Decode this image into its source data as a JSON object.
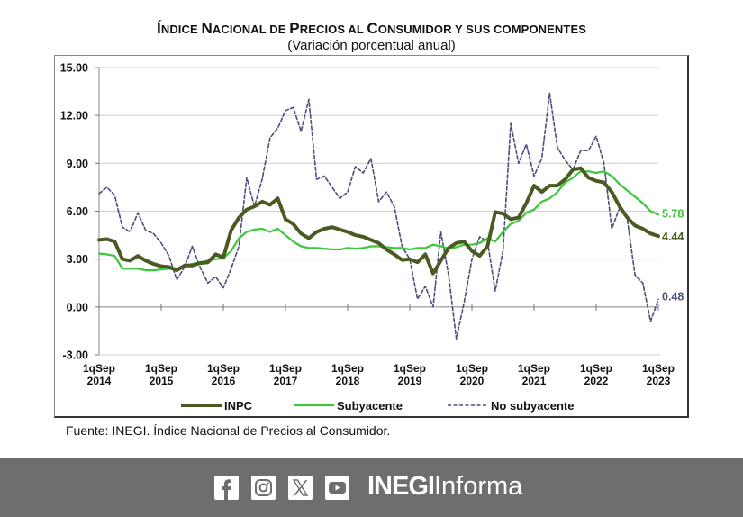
{
  "title_parts": {
    "p1_big": "Í",
    "p1_small": "NDICE ",
    "p2_big": "N",
    "p2_small": "ACIONAL DE ",
    "p3_big": "P",
    "p3_small": "RECIOS AL ",
    "p4_big": "C",
    "p4_small": "ONSUMIDOR Y SUS COMPONENTES"
  },
  "subtitle": "(Variación porcentual anual)",
  "source": "Fuente: INEGI. Índice Nacional de Precios al Consumidor.",
  "footer": {
    "social_icons": [
      "facebook-icon",
      "instagram-icon",
      "x-icon",
      "youtube-icon"
    ],
    "brand_bold": "INEGI",
    "brand_light": "Informa",
    "background": "#6d6e70"
  },
  "chart_data": {
    "type": "line",
    "title": "ÍNDICE NACIONAL DE PRECIOS AL CONSUMIDOR Y SUS COMPONENTES",
    "subtitle": "(Variación porcentual anual)",
    "xlabel": "",
    "ylabel": "",
    "ylim": [
      -3,
      15
    ],
    "yticks": [
      "15.00",
      "12.00",
      "9.00",
      "6.00",
      "3.00",
      "0.00",
      "-3.00"
    ],
    "ytick_values": [
      15,
      12,
      9,
      6,
      3,
      0,
      -3
    ],
    "xlim": [
      2014.0,
      2023.0
    ],
    "xticks": [
      {
        "line1": "1qSep",
        "line2": "2014",
        "value": 2014
      },
      {
        "line1": "1qSep",
        "line2": "2015",
        "value": 2015
      },
      {
        "line1": "1qSep",
        "line2": "2016",
        "value": 2016
      },
      {
        "line1": "1qSep",
        "line2": "2017",
        "value": 2017
      },
      {
        "line1": "1qSep",
        "line2": "2018",
        "value": 2018
      },
      {
        "line1": "1qSep",
        "line2": "2019",
        "value": 2019
      },
      {
        "line1": "1qSep",
        "line2": "2020",
        "value": 2020
      },
      {
        "line1": "1qSep",
        "line2": "2021",
        "value": 2021
      },
      {
        "line1": "1qSep",
        "line2": "2022",
        "value": 2022
      },
      {
        "line1": "1qSep",
        "line2": "2023",
        "value": 2023
      }
    ],
    "grid": "horizontal",
    "legend_position": "bottom",
    "x": [
      2014.0,
      2014.125,
      2014.25,
      2014.375,
      2014.5,
      2014.625,
      2014.75,
      2014.875,
      2015.0,
      2015.125,
      2015.25,
      2015.375,
      2015.5,
      2015.625,
      2015.75,
      2015.875,
      2016.0,
      2016.125,
      2016.25,
      2016.375,
      2016.5,
      2016.625,
      2016.75,
      2016.875,
      2017.0,
      2017.125,
      2017.25,
      2017.375,
      2017.5,
      2017.625,
      2017.75,
      2017.875,
      2018.0,
      2018.125,
      2018.25,
      2018.375,
      2018.5,
      2018.625,
      2018.75,
      2018.875,
      2019.0,
      2019.125,
      2019.25,
      2019.375,
      2019.5,
      2019.625,
      2019.75,
      2019.875,
      2020.0,
      2020.125,
      2020.25,
      2020.375,
      2020.5,
      2020.625,
      2020.75,
      2020.875,
      2021.0,
      2021.125,
      2021.25,
      2021.375,
      2021.5,
      2021.625,
      2021.75,
      2021.875,
      2022.0,
      2022.125,
      2022.25,
      2022.375,
      2022.5,
      2022.625,
      2022.75,
      2022.875,
      2023.0
    ],
    "series": [
      {
        "name": "INPC",
        "color": "#4b5a23",
        "style": "solid-thick",
        "end_label": "4.44",
        "values": [
          4.2,
          4.25,
          4.1,
          3.0,
          2.9,
          3.2,
          2.9,
          2.7,
          2.55,
          2.5,
          2.3,
          2.6,
          2.6,
          2.75,
          2.8,
          3.3,
          3.1,
          4.8,
          5.6,
          6.1,
          6.3,
          6.6,
          6.4,
          6.8,
          5.5,
          5.2,
          4.6,
          4.3,
          4.7,
          4.9,
          5.0,
          4.85,
          4.7,
          4.5,
          4.4,
          4.2,
          4.0,
          3.6,
          3.3,
          2.95,
          3.0,
          2.8,
          3.3,
          2.1,
          2.9,
          3.7,
          4.0,
          4.1,
          3.5,
          3.2,
          3.8,
          5.95,
          5.85,
          5.5,
          5.6,
          6.5,
          7.6,
          7.2,
          7.6,
          7.6,
          8.0,
          8.6,
          8.7,
          8.1,
          7.9,
          7.8,
          7.2,
          6.3,
          5.6,
          5.1,
          4.9,
          4.6,
          4.44
        ]
      },
      {
        "name": "Subyacente",
        "color": "#3ec73c",
        "style": "solid",
        "end_label": "5.78",
        "values": [
          3.35,
          3.3,
          3.2,
          2.4,
          2.4,
          2.4,
          2.3,
          2.3,
          2.35,
          2.4,
          2.4,
          2.6,
          2.7,
          2.8,
          2.9,
          3.0,
          3.05,
          3.5,
          4.3,
          4.7,
          4.85,
          4.9,
          4.7,
          4.9,
          4.5,
          4.1,
          3.8,
          3.7,
          3.7,
          3.65,
          3.6,
          3.6,
          3.7,
          3.65,
          3.7,
          3.8,
          3.8,
          3.75,
          3.7,
          3.7,
          3.6,
          3.7,
          3.7,
          3.9,
          3.8,
          3.65,
          3.75,
          3.9,
          3.9,
          4.0,
          4.3,
          4.1,
          4.7,
          5.2,
          5.4,
          5.9,
          6.1,
          6.6,
          6.8,
          7.2,
          7.8,
          8.1,
          8.5,
          8.5,
          8.4,
          8.5,
          8.2,
          7.7,
          7.3,
          6.9,
          6.5,
          6.0,
          5.78
        ]
      },
      {
        "name": "No subyacente",
        "color": "#4a4e7a",
        "style": "dashed",
        "end_label": "0.48",
        "values": [
          7.1,
          7.5,
          7.0,
          5.0,
          4.7,
          5.9,
          4.8,
          4.6,
          4.0,
          3.2,
          1.7,
          2.5,
          3.8,
          2.5,
          1.5,
          1.9,
          1.2,
          2.4,
          3.8,
          8.1,
          6.3,
          8.0,
          10.6,
          11.2,
          12.3,
          12.5,
          11.0,
          13.0,
          8.0,
          8.2,
          7.5,
          6.8,
          7.2,
          8.8,
          8.4,
          9.3,
          6.6,
          7.2,
          6.3,
          3.8,
          3.0,
          0.5,
          1.3,
          0.0,
          4.7,
          2.0,
          -2.0,
          0.3,
          3.0,
          4.4,
          4.1,
          1.0,
          3.5,
          11.5,
          9.0,
          10.2,
          8.2,
          9.3,
          13.4,
          10.0,
          9.2,
          8.6,
          9.8,
          9.8,
          10.7,
          9.0,
          4.9,
          6.2,
          5.5,
          2.0,
          1.5,
          -0.9,
          0.48
        ]
      }
    ]
  }
}
